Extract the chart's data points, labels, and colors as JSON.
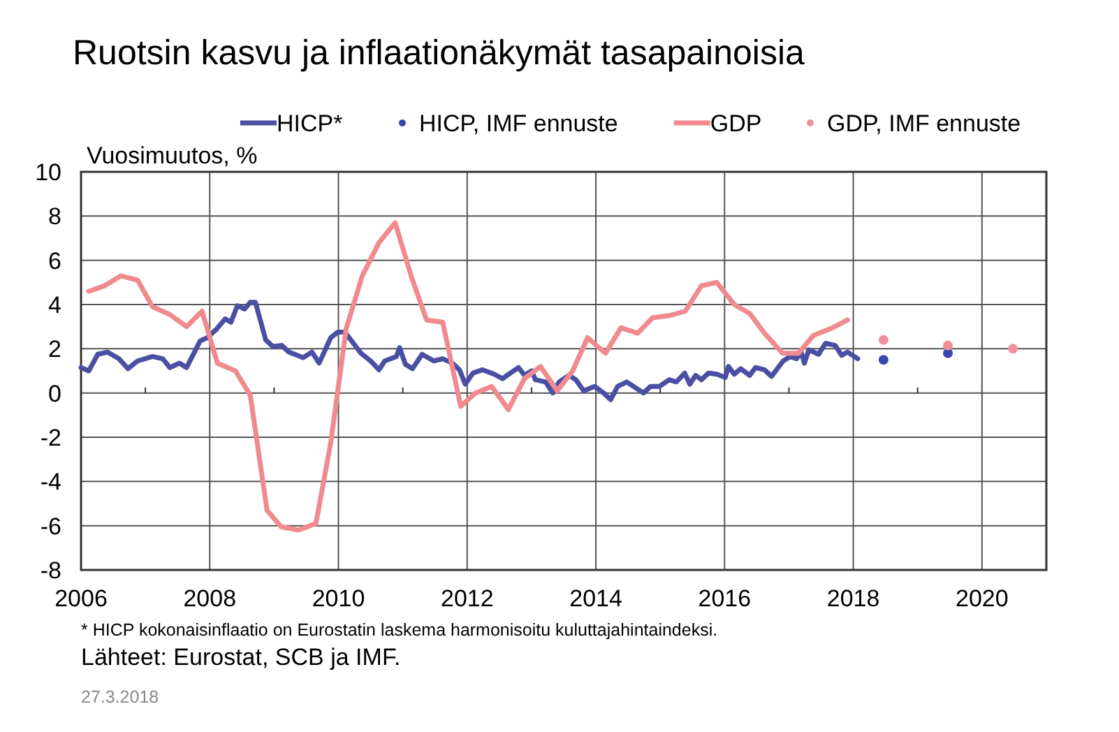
{
  "chart_data": {
    "type": "line",
    "title": "Ruotsin kasvu ja inflaationäkymät tasapainoisia",
    "ylabel": "Vuosimuutos, %",
    "xlim": [
      2006,
      2021
    ],
    "xticks": [
      2006,
      {
        "value": 2007,
        "label": null
      },
      2008,
      {
        "value": 2009,
        "label": null
      },
      2010,
      {
        "value": 2011,
        "label": null
      },
      2012,
      {
        "value": 2013,
        "label": null
      },
      2014,
      {
        "value": 2015,
        "label": null
      },
      2016,
      {
        "value": 2017,
        "label": null
      },
      2018,
      {
        "value": 2019,
        "label": null
      },
      2020
    ],
    "ylim": [
      -8,
      10
    ],
    "yticks": [
      -8,
      -6,
      -4,
      -2,
      0,
      2,
      4,
      6,
      8,
      10
    ],
    "grid": true,
    "legend": "top",
    "line_style": "solid",
    "series": [
      {
        "name": "HICP*",
        "color": "#4a4fa3",
        "x": [
          2006.0,
          2006.12,
          2006.26,
          2006.41,
          2006.59,
          2006.73,
          2006.88,
          2007.11,
          2007.27,
          2007.38,
          2007.53,
          2007.64,
          2007.85,
          2007.96,
          2008.11,
          2008.24,
          2008.33,
          2008.43,
          2008.54,
          2008.63,
          2008.71,
          2008.87,
          2008.98,
          2009.12,
          2009.23,
          2009.45,
          2009.59,
          2009.7,
          2009.88,
          2009.99,
          2010.1,
          2010.35,
          2010.5,
          2010.63,
          2010.72,
          2010.9,
          2010.95,
          2011.04,
          2011.15,
          2011.3,
          2011.48,
          2011.62,
          2011.77,
          2011.88,
          2011.97,
          2012.09,
          2012.24,
          2012.42,
          2012.55,
          2012.67,
          2012.8,
          2012.89,
          2013.0,
          2013.06,
          2013.22,
          2013.33,
          2013.43,
          2013.58,
          2013.69,
          2013.81,
          2013.98,
          2014.12,
          2014.23,
          2014.34,
          2014.48,
          2014.74,
          2014.85,
          2014.99,
          2015.14,
          2015.25,
          2015.38,
          2015.46,
          2015.55,
          2015.64,
          2015.75,
          2015.88,
          2016.01,
          2016.06,
          2016.15,
          2016.25,
          2016.39,
          2016.48,
          2016.62,
          2016.73,
          2016.91,
          2017.02,
          2017.12,
          2017.19,
          2017.24,
          2017.31,
          2017.46,
          2017.57,
          2017.72,
          2017.82,
          2017.91,
          2018.07
        ],
        "values": [
          1.15,
          1.0,
          1.75,
          1.85,
          1.55,
          1.1,
          1.45,
          1.65,
          1.55,
          1.15,
          1.35,
          1.15,
          2.35,
          2.5,
          2.9,
          3.35,
          3.2,
          3.95,
          3.8,
          4.1,
          4.1,
          2.4,
          2.1,
          2.15,
          1.85,
          1.6,
          1.85,
          1.35,
          2.5,
          2.75,
          2.75,
          1.8,
          1.45,
          1.05,
          1.45,
          1.65,
          2.05,
          1.3,
          1.1,
          1.75,
          1.45,
          1.55,
          1.35,
          1.05,
          0.4,
          0.9,
          1.05,
          0.85,
          0.65,
          0.9,
          1.15,
          0.8,
          1.0,
          0.6,
          0.5,
          0.0,
          0.5,
          0.8,
          0.6,
          0.1,
          0.3,
          0.0,
          -0.3,
          0.3,
          0.5,
          0.0,
          0.3,
          0.3,
          0.6,
          0.5,
          0.9,
          0.4,
          0.8,
          0.6,
          0.9,
          0.85,
          0.7,
          1.2,
          0.85,
          1.1,
          0.8,
          1.15,
          1.05,
          0.75,
          1.45,
          1.65,
          1.55,
          1.85,
          1.35,
          1.95,
          1.75,
          2.25,
          2.15,
          1.7,
          1.85,
          1.55
        ]
      },
      {
        "name": "HICP, IMF ennuste",
        "type": "scatter",
        "marker": "circle",
        "color": "#3a46b0",
        "x": [
          2018.47,
          2019.47
        ],
        "values": [
          1.5,
          1.8
        ]
      },
      {
        "name": "GDP",
        "color": "#f08a8f",
        "x": [
          2006.12,
          2006.37,
          2006.62,
          2006.88,
          2007.11,
          2007.38,
          2007.64,
          2007.88,
          2008.12,
          2008.4,
          2008.63,
          2008.89,
          2009.11,
          2009.38,
          2009.65,
          2009.88,
          2010.12,
          2010.37,
          2010.63,
          2010.88,
          2011.14,
          2011.37,
          2011.62,
          2011.9,
          2012.13,
          2012.38,
          2012.64,
          2012.89,
          2013.14,
          2013.4,
          2013.64,
          2013.87,
          2014.15,
          2014.39,
          2014.65,
          2014.88,
          2015.14,
          2015.39,
          2015.64,
          2015.88,
          2016.15,
          2016.39,
          2016.62,
          2016.9,
          2017.15,
          2017.38,
          2017.64,
          2017.91
        ],
        "values": [
          4.6,
          4.85,
          5.3,
          5.1,
          3.9,
          3.55,
          3.0,
          3.7,
          1.35,
          1.0,
          -0.1,
          -5.3,
          -6.05,
          -6.2,
          -5.9,
          -2.25,
          2.9,
          5.3,
          6.8,
          7.7,
          5.2,
          3.3,
          3.2,
          -0.6,
          0.0,
          0.3,
          -0.75,
          0.65,
          1.2,
          0.1,
          1.0,
          2.5,
          1.8,
          2.95,
          2.7,
          3.4,
          3.5,
          3.7,
          4.85,
          5.0,
          4.0,
          3.6,
          2.7,
          1.8,
          1.8,
          2.6,
          2.9,
          3.3
        ]
      },
      {
        "name": "GDP, IMF ennuste",
        "type": "scatter",
        "marker": "circle",
        "color": "#f0909a",
        "x": [
          2018.47,
          2019.47,
          2020.48
        ],
        "values": [
          2.4,
          2.15,
          2.0
        ]
      }
    ],
    "annotations": [
      "* HICP kokonaisinflaatio on Eurostatin laskema harmonisoitu kuluttajahintaindeksi.",
      "Lähteet: Eurostat, SCB ja IMF.",
      "27.3.2018"
    ]
  }
}
